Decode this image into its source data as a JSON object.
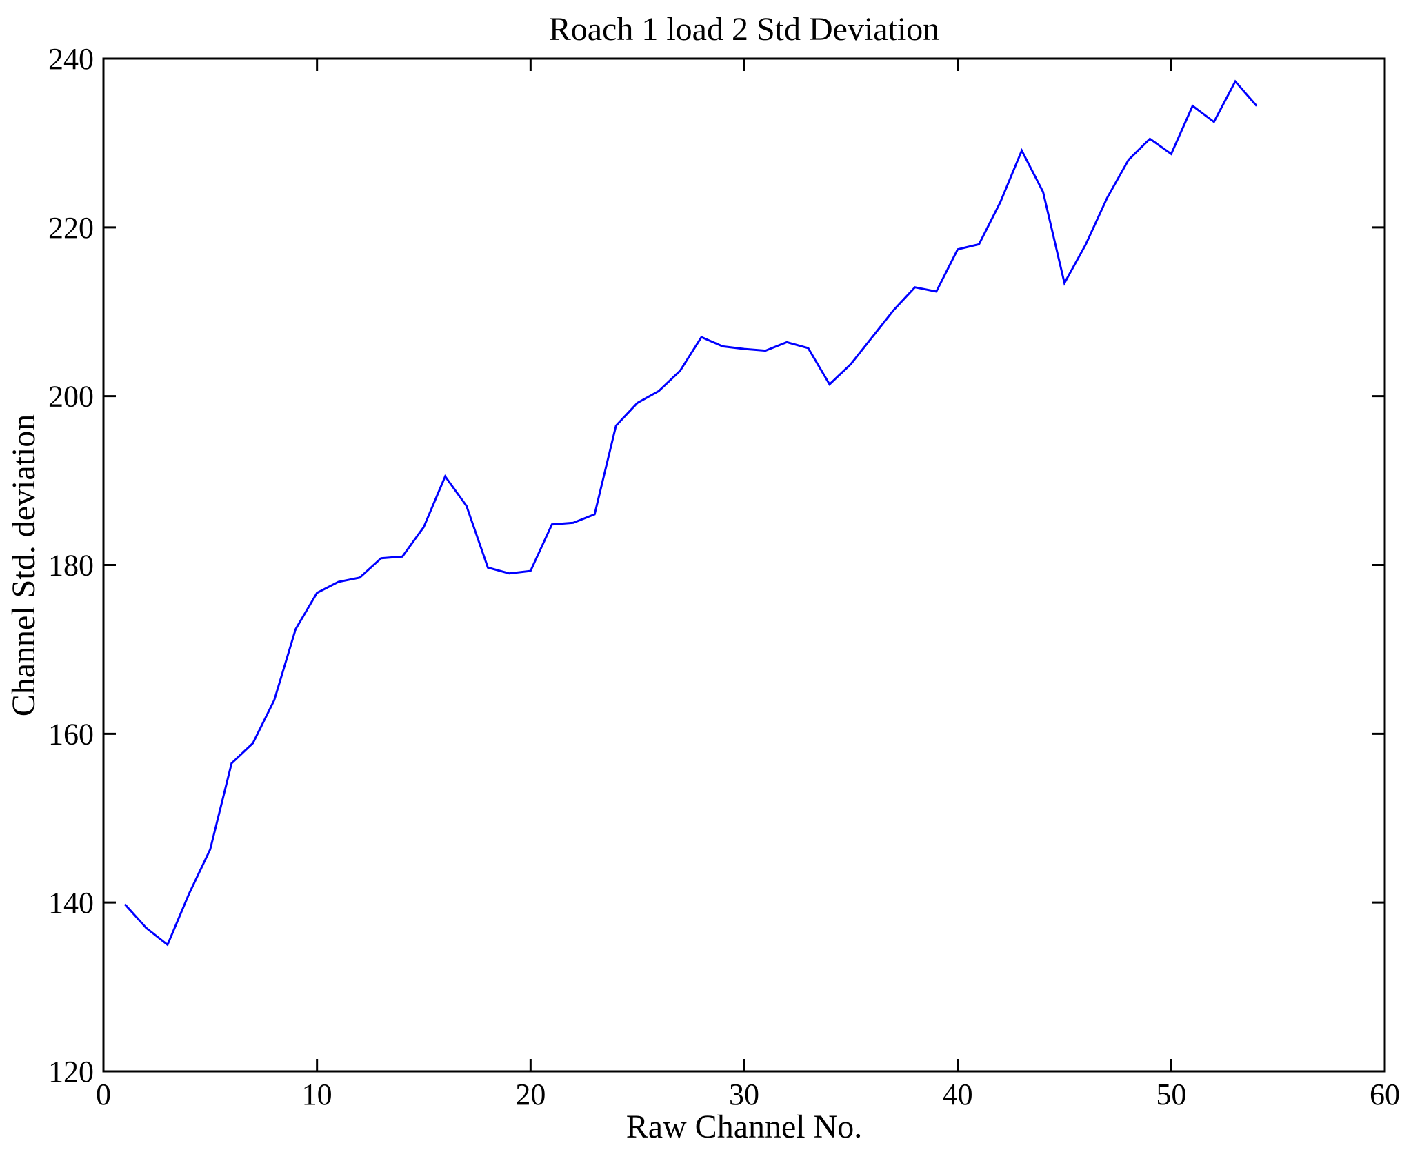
{
  "figure": {
    "background": "#ffffff",
    "frame_color": "#000000"
  },
  "chart_data": {
    "type": "line",
    "title": "Roach 1 load 2 Std Deviation",
    "xlabel": "Raw Channel No.",
    "ylabel": "Channel Std. deviation",
    "xlim": [
      0,
      60
    ],
    "ylim": [
      120,
      240
    ],
    "xticks": [
      0,
      10,
      20,
      30,
      40,
      50,
      60
    ],
    "yticks": [
      120,
      140,
      160,
      180,
      200,
      220,
      240
    ],
    "grid": false,
    "legend": null,
    "line_color": "#0000FF",
    "series": [
      {
        "name": "Channel Std deviation",
        "x": [
          1,
          2,
          3,
          4,
          5,
          6,
          7,
          8,
          9,
          10,
          11,
          12,
          13,
          14,
          15,
          16,
          17,
          18,
          19,
          20,
          21,
          22,
          23,
          24,
          25,
          26,
          27,
          28,
          29,
          30,
          31,
          32,
          33,
          34,
          35,
          36,
          37,
          38,
          39,
          40,
          41,
          42,
          43,
          44,
          45,
          46,
          47,
          48,
          49,
          50,
          51,
          52,
          53,
          54
        ],
        "y": [
          139.8,
          137.0,
          135.0,
          141.0,
          146.3,
          156.5,
          158.9,
          164.0,
          172.4,
          176.7,
          178.0,
          178.5,
          180.8,
          181.0,
          184.5,
          190.5,
          187.0,
          179.7,
          179.0,
          179.3,
          184.8,
          185.0,
          186.0,
          196.5,
          199.2,
          200.6,
          203.0,
          207.0,
          205.9,
          205.6,
          205.4,
          206.4,
          205.7,
          201.4,
          203.8,
          207.0,
          210.2,
          212.9,
          212.4,
          217.4,
          218.0,
          223.0,
          229.1,
          224.2,
          213.4,
          218.0,
          223.5,
          228.0,
          230.5,
          228.7,
          234.4,
          232.5,
          237.3,
          234.4
        ]
      }
    ]
  }
}
